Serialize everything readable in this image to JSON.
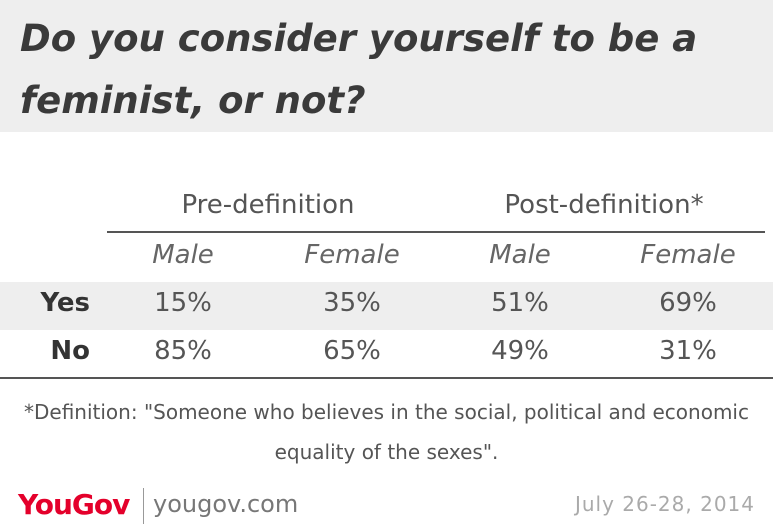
{
  "header": {
    "title": "Do you consider yourself to be a feminist, or not?"
  },
  "table": {
    "groups": [
      "Pre-definition",
      "Post-definition*"
    ],
    "subheaders": [
      "Male",
      "Female",
      "Male",
      "Female"
    ],
    "rows": [
      [
        "Yes",
        "15%",
        "35%",
        "51%",
        "69%"
      ],
      [
        "No",
        "85%",
        "65%",
        "49%",
        "31%"
      ]
    ]
  },
  "footnote": "*Definition: \"Someone who believes in the social, political and economic equality of the sexes\".",
  "footer": {
    "logo": "YouGov",
    "url": "yougov.com",
    "date": "July 26-28, 2014"
  }
}
